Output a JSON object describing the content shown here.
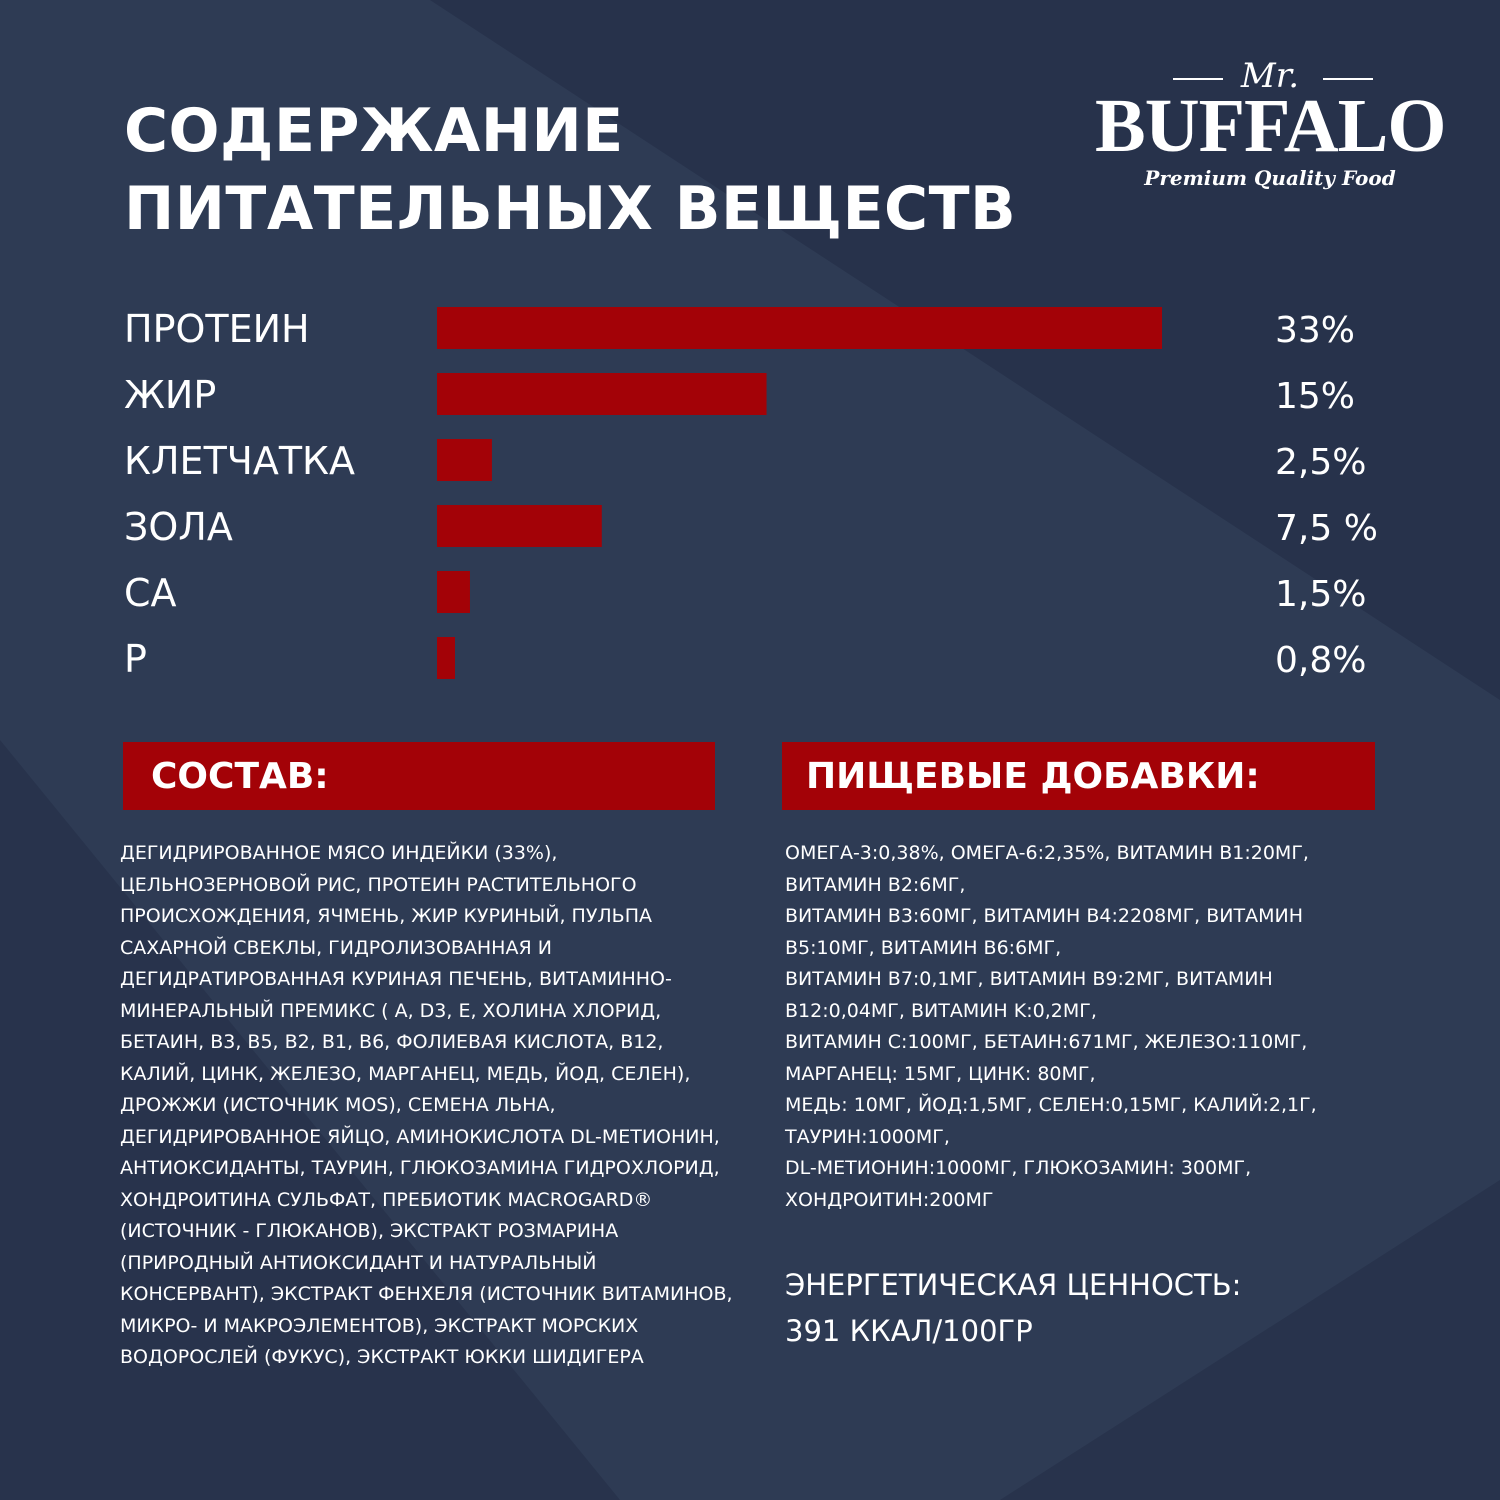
{
  "title": {
    "line1": "СОДЕРЖАНИЕ",
    "line2": "ПИТАТЕЛЬНЫХ ВЕЩЕСТВ"
  },
  "logo": {
    "mr": "Mr.",
    "brand": "BUFFALO",
    "tagline": "Premium Quality Food"
  },
  "colors": {
    "background": "#2e3b54",
    "background_dark": "#26314a",
    "bar": "#a30207",
    "text": "#ffffff"
  },
  "chart_data": {
    "type": "bar",
    "orientation": "horizontal",
    "categories": [
      "ПРОТЕИН",
      "ЖИР",
      "КЛЕТЧАТКА",
      "ЗОЛА",
      "CA",
      "P"
    ],
    "values": [
      33,
      15,
      2.5,
      7.5,
      1.5,
      0.8
    ],
    "value_labels": [
      "33%",
      "15%",
      "2,5%",
      "7,5 %",
      "1,5%",
      "0,8%"
    ],
    "xlim": [
      0,
      33
    ],
    "grid": false
  },
  "composition": {
    "heading": "СОСТАВ:",
    "text": "ДЕГИДРИРОВАННОЕ МЯСО ИНДЕЙКИ (33%), ЦЕЛЬНОЗЕРНОВОЙ РИС, ПРОТЕИН РАСТИТЕЛЬНОГО ПРОИСХОЖДЕНИЯ, ЯЧМЕНЬ, ЖИР КУРИНЫЙ, ПУЛЬПА САХАРНОЙ СВЕКЛЫ, ГИДРОЛИЗОВАННАЯ И ДЕГИДРАТИРОВАННАЯ КУРИНАЯ ПЕЧЕНЬ, ВИТАМИННО-МИНЕРАЛЬНЫЙ ПРЕМИКС ( A, D3, E, ХОЛИНА ХЛОРИД, БЕТАИН, B3, B5, B2, B1, B6, ФОЛИЕВАЯ КИСЛОТА, B12, КАЛИЙ, ЦИНК, ЖЕЛЕЗО, МАРГАНЕЦ, МЕДЬ, ЙОД, СЕЛЕН), ДРОЖЖИ (ИСТОЧНИК MOS), СЕМЕНА ЛЬНА, ДЕГИДРИРОВАННОЕ ЯЙЦО, АМИНОКИСЛОТА DL-МЕТИОНИН, АНТИОКСИДАНТЫ, ТАУРИН, ГЛЮКОЗАМИНА ГИДРОХЛОРИД, ХОНДРОИТИНА СУЛЬФАТ, ПРЕБИОТИК MACROGARD® (ИСТОЧНИК - ГЛЮКАНОВ), ЭКСТРАКТ РОЗМАРИНА (ПРИРОДНЫЙ АНТИОКСИДАНТ И НАТУРАЛЬНЫЙ КОНСЕРВАНТ), ЭКСТРАКТ ФЕНХЕЛЯ (ИСТОЧНИК ВИТАМИНОВ, МИКРО- И МАКРОЭЛЕМЕНТОВ), ЭКСТРАКТ МОРСКИХ ВОДОРОСЛЕЙ (ФУКУС), ЭКСТРАКТ ЮККИ ШИДИГЕРА"
  },
  "additives": {
    "heading": "ПИЩЕВЫЕ ДОБАВКИ:",
    "lines": [
      "ОМЕГА-3:0,38%, ОМЕГА-6:2,35%, ВИТАМИН B1:20МГ,",
      "ВИТАМИН B2:6МГ,",
      "ВИТАМИН B3:60МГ, ВИТАМИН B4:2208МГ, ВИТАМИН",
      "B5:10МГ, ВИТАМИН B6:6МГ,",
      "ВИТАМИН B7:0,1МГ, ВИТАМИН B9:2МГ, ВИТАМИН",
      "B12:0,04МГ, ВИТАМИН K:0,2МГ,",
      "ВИТАМИН C:100МГ, БЕТАИН:671МГ, ЖЕЛЕЗО:110МГ,",
      "МАРГАНЕЦ: 15МГ, ЦИНК: 80МГ,",
      "МЕДЬ: 10МГ, ЙОД:1,5МГ, СЕЛЕН:0,15МГ, КАЛИЙ:2,1Г,",
      "ТАУРИН:1000МГ,",
      "DL-МЕТИОНИН:1000МГ, ГЛЮКОЗАМИН: 300МГ,",
      "ХОНДРОИТИН:200МГ"
    ]
  },
  "energy": {
    "label": "ЭНЕРГЕТИЧЕСКАЯ ЦЕННОСТЬ:",
    "value": "391 ККАЛ/100ГР"
  }
}
